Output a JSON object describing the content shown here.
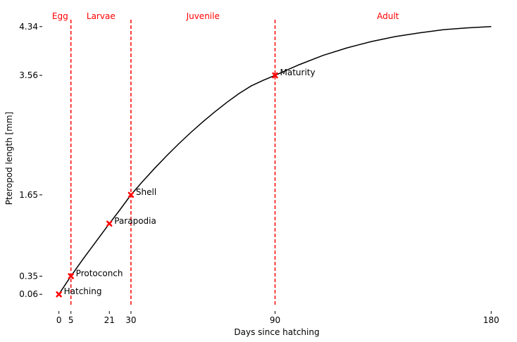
{
  "chart_data": {
    "type": "line",
    "xlabel": "Days since hatching",
    "ylabel": "Pteropod length [mm]",
    "xlim": [
      -4,
      184
    ],
    "ylim": [
      -0.05,
      4.45
    ],
    "x_ticks": [
      0,
      5,
      21,
      30,
      90,
      180
    ],
    "y_ticks": [
      {
        "value": 0.06,
        "label": "0.06"
      },
      {
        "value": 0.35,
        "label": "0.35"
      },
      {
        "value": 1.65,
        "label": "1.65"
      },
      {
        "value": 3.56,
        "label": "3.56"
      },
      {
        "value": 4.34,
        "label": "4.34"
      }
    ],
    "grid": false,
    "series": [
      {
        "color": "#000000",
        "x": [
          0,
          5,
          10,
          15,
          21,
          25,
          30,
          35,
          40,
          45,
          50,
          55,
          60,
          65,
          70,
          75,
          80,
          85,
          90,
          100,
          110,
          120,
          130,
          140,
          150,
          160,
          170,
          180
        ],
        "y": [
          0.06,
          0.35,
          0.62,
          0.88,
          1.19,
          1.39,
          1.65,
          1.87,
          2.08,
          2.28,
          2.47,
          2.65,
          2.82,
          2.98,
          3.13,
          3.27,
          3.39,
          3.48,
          3.56,
          3.73,
          3.88,
          4.0,
          4.1,
          4.18,
          4.24,
          4.29,
          4.32,
          4.34
        ]
      }
    ],
    "milestones": [
      {
        "label": "Hatching",
        "x": 0,
        "y": 0.06
      },
      {
        "label": "Protoconch",
        "x": 5,
        "y": 0.35
      },
      {
        "label": "Parapodia",
        "x": 21,
        "y": 1.19
      },
      {
        "label": "Shell",
        "x": 30,
        "y": 1.65
      },
      {
        "label": "Maturity",
        "x": 90,
        "y": 3.56
      }
    ],
    "marker_color": "#ff0000",
    "phase_boundaries": [
      5,
      30,
      90
    ],
    "phase_line_color": "#ff0000",
    "phases": [
      {
        "label": "Egg",
        "start": -4,
        "end": 5
      },
      {
        "label": "Larvae",
        "start": 5,
        "end": 30
      },
      {
        "label": "Juvenile",
        "start": 30,
        "end": 90
      },
      {
        "label": "Adult",
        "start": 90,
        "end": 184
      }
    ],
    "phase_label_color": "#ff0000"
  }
}
